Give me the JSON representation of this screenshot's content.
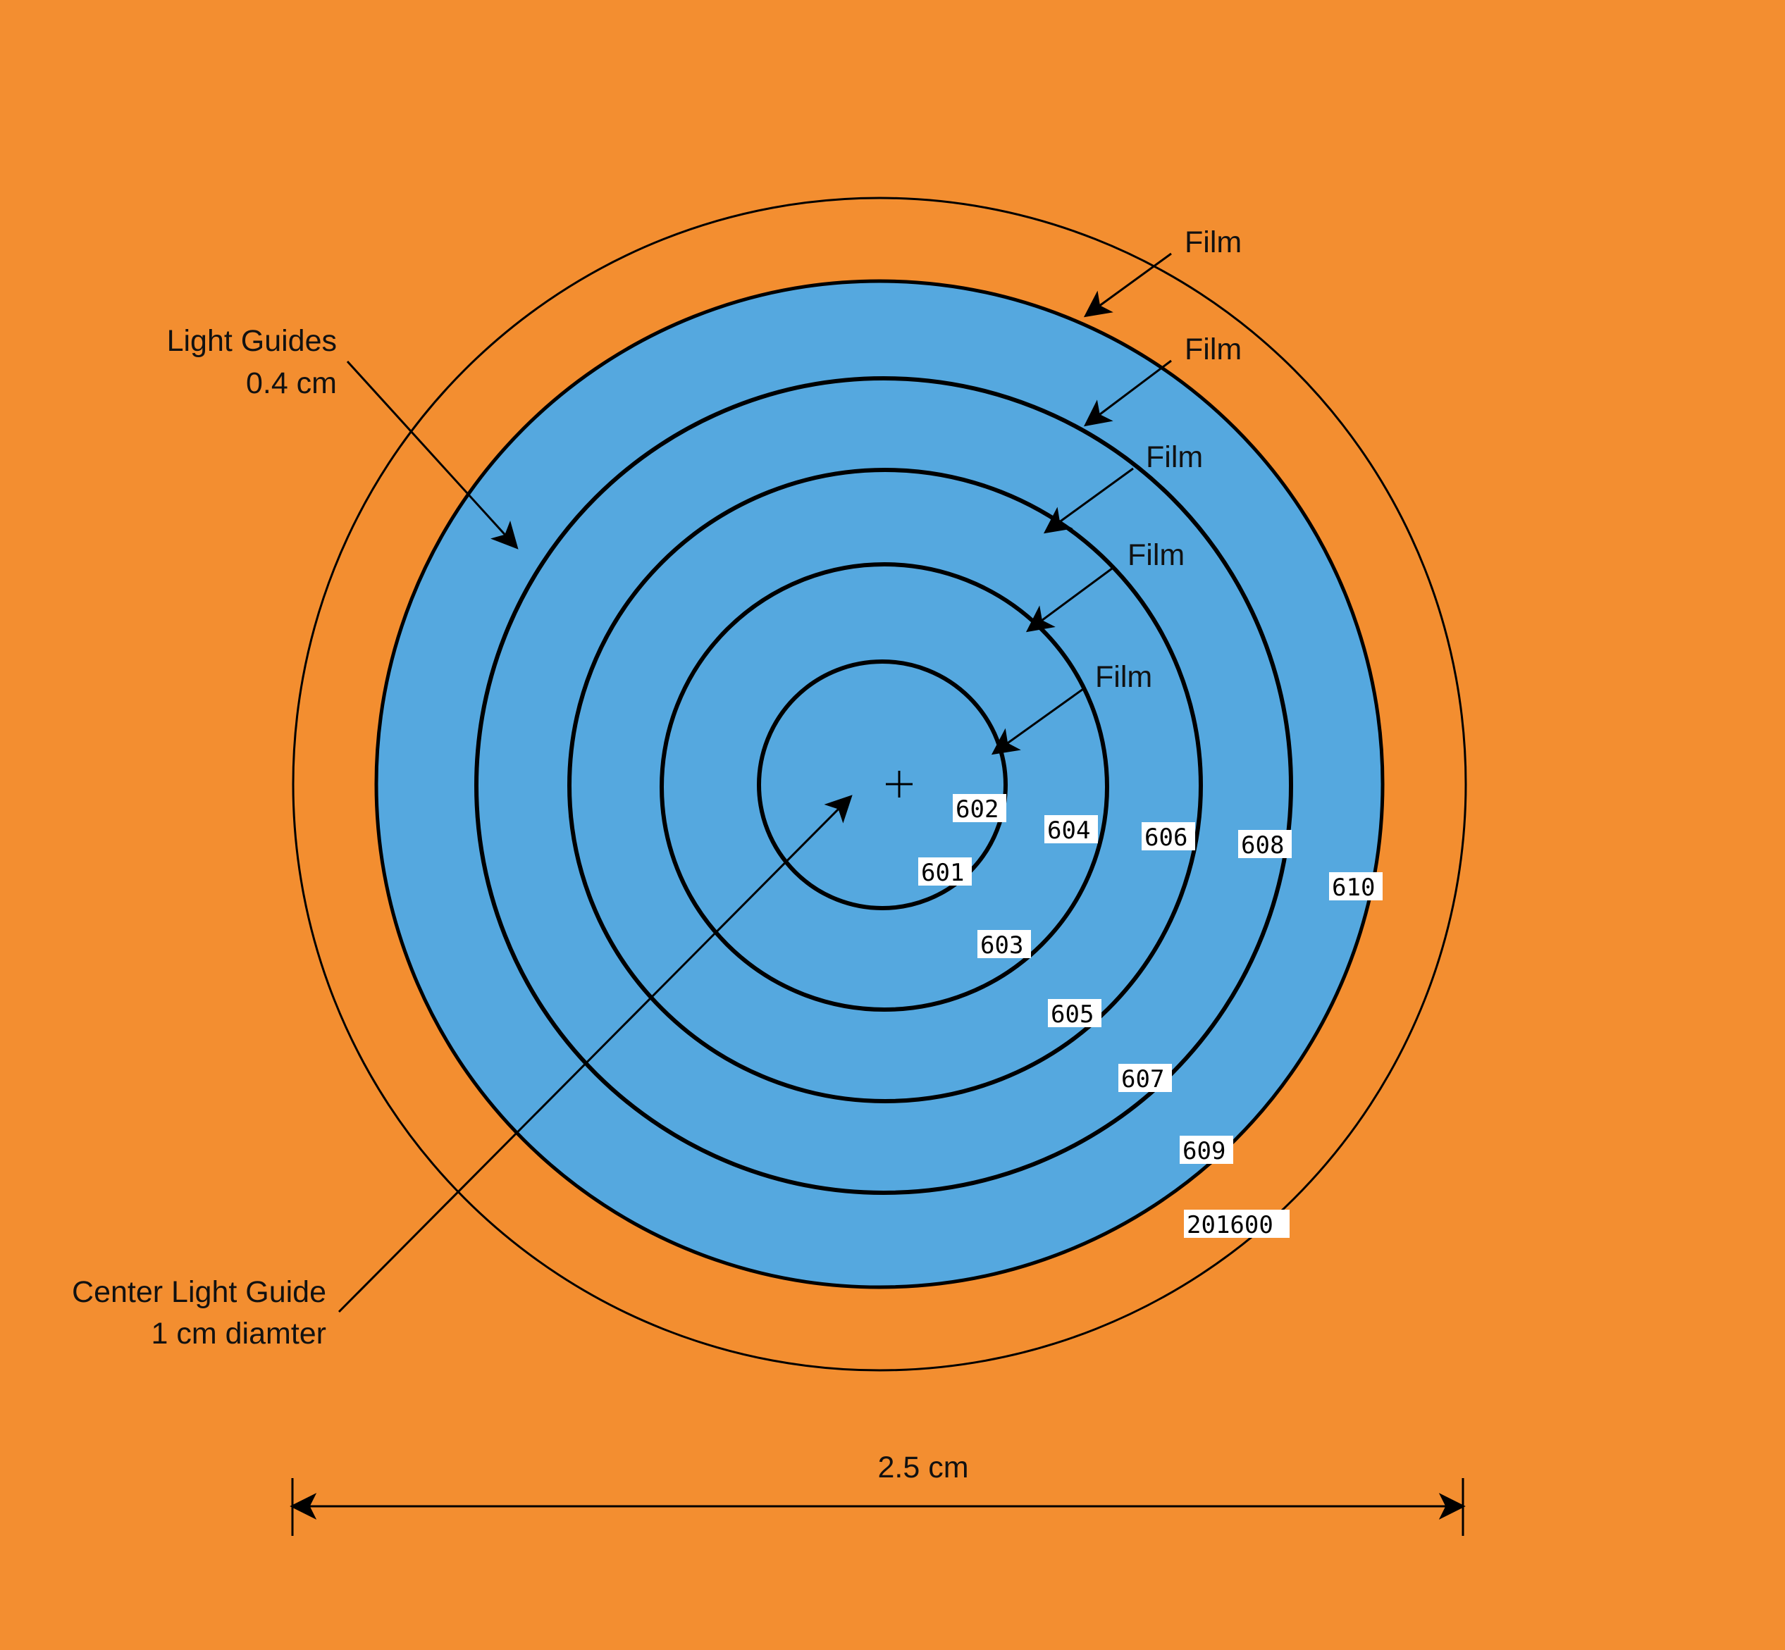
{
  "colors": {
    "background": "#F38E30",
    "light_guide": "#55A8DF",
    "line": "#000000",
    "tag_background": "#FFFFFF"
  },
  "annotations": {
    "light_guides_line1": "Light Guides",
    "light_guides_line2": "0.4 cm",
    "center_guide_line1": "Center Light Guide",
    "center_guide_line2": "1 cm diamter",
    "film_labels": [
      "Film",
      "Film",
      "Film",
      "Film",
      "Film"
    ],
    "dimension": "2.5 cm"
  },
  "region_tags": [
    "602",
    "604",
    "606",
    "608",
    "610",
    "601",
    "603",
    "605",
    "607",
    "609",
    "201600"
  ]
}
